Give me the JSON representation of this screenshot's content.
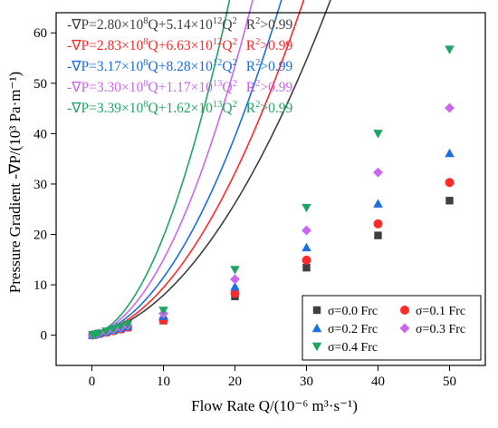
{
  "chart_data": {
    "type": "scatter",
    "xlabel": "Flow Rate Q/(10⁻⁶ m³·s⁻¹)",
    "ylabel": "Pressure Gradient -∇P/(10³ Pa·m⁻¹)",
    "xlim": [
      -5,
      55
    ],
    "ylim": [
      -6,
      64
    ],
    "x_ticks": [
      0,
      10,
      20,
      30,
      40,
      50
    ],
    "y_ticks": [
      0,
      10,
      20,
      30,
      40,
      50,
      60
    ],
    "grid": false,
    "legend_position": "bottom-right",
    "x": [
      0.1,
      0.5,
      1,
      2,
      3,
      4,
      5,
      10,
      20,
      30,
      40,
      50
    ],
    "series": [
      {
        "name": "σ=0.0 Frc",
        "color": "#3f3f3f",
        "marker": "square",
        "values": [
          0.03,
          0.14,
          0.29,
          0.58,
          0.89,
          1.2,
          1.53,
          2.9,
          7.7,
          13.4,
          19.8,
          26.7
        ],
        "fit": {
          "a": 0.0514,
          "b": 0.28
        },
        "equation": {
          "prefix": "-∇P=2.80×10",
          "exp1": "8",
          "mid": "Q+5.14×10",
          "exp2": "12",
          "tail": "Q",
          "exp3": "2",
          "r2": "R",
          "r2exp": "2",
          "r2tail": ">0.99"
        }
      },
      {
        "name": "σ=0.1 Frc",
        "color": "#ff2a2a",
        "marker": "circle",
        "values": [
          0.03,
          0.14,
          0.3,
          0.6,
          0.9,
          1.24,
          1.6,
          3.0,
          8.3,
          14.9,
          22.1,
          30.3
        ],
        "fit": {
          "a": 0.0663,
          "b": 0.283
        },
        "equation": {
          "prefix": "-∇P=2.83×10",
          "exp1": "8",
          "mid": "Q+6.63×10",
          "exp2": "12",
          "tail": "Q",
          "exp3": "2",
          "r2": "R",
          "r2exp": "2",
          "r2tail": ">0.99"
        }
      },
      {
        "name": "σ=0.2 Frc",
        "color": "#1a6fe0",
        "marker": "triangle-up",
        "values": [
          0.03,
          0.16,
          0.33,
          0.67,
          1.02,
          1.4,
          1.78,
          3.8,
          9.6,
          17.4,
          26.1,
          36.1
        ],
        "fit": {
          "a": 0.0828,
          "b": 0.317
        },
        "equation": {
          "prefix": "-∇P=3.17×10",
          "exp1": "8",
          "mid": "Q+8.28×10",
          "exp2": "12",
          "tail": "Q",
          "exp3": "2",
          "r2": "R",
          "r2exp": "2",
          "r2tail": ">0.99"
        }
      },
      {
        "name": "σ=0.3 Frc",
        "color": "#cc66ee",
        "marker": "diamond",
        "values": [
          0.03,
          0.17,
          0.34,
          0.71,
          1.1,
          1.51,
          1.95,
          4.3,
          11.1,
          20.8,
          32.3,
          45.1
        ],
        "fit": {
          "a": 0.117,
          "b": 0.33
        },
        "equation": {
          "prefix": "-∇P=3.30×10",
          "exp1": "8",
          "mid": "Q+1.17×10",
          "exp2": "13",
          "tail": "Q",
          "exp3": "2",
          "r2": "R",
          "r2exp": "2",
          "r2tail": ">0.99"
        }
      },
      {
        "name": "σ=0.4 Frc",
        "color": "#1ea564",
        "marker": "triangle-down",
        "values": [
          0.03,
          0.17,
          0.36,
          0.76,
          1.19,
          1.66,
          2.15,
          4.9,
          13.0,
          25.3,
          40.0,
          56.7
        ],
        "fit": {
          "a": 0.162,
          "b": 0.339
        },
        "equation": {
          "prefix": "-∇P=3.39×10",
          "exp1": "8",
          "mid": "Q+1.62×10",
          "exp2": "13",
          "tail": "Q",
          "exp3": "2",
          "r2": "R",
          "r2exp": "2",
          "r2tail": ">0.99"
        }
      }
    ]
  }
}
